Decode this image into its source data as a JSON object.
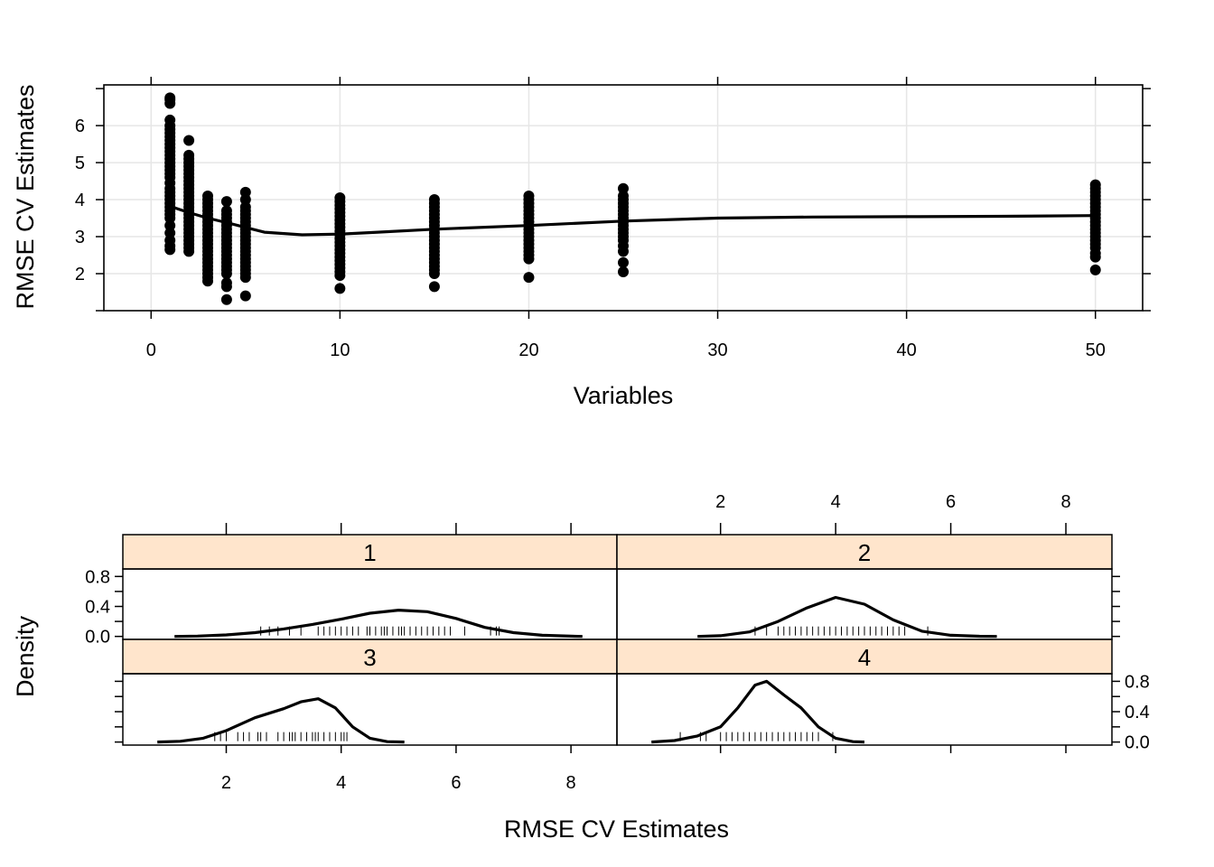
{
  "chart_data": [
    {
      "type": "scatter",
      "xlabel": "Variables",
      "ylabel": "RMSE CV Estimates",
      "xlim": [
        -2.5,
        52.5
      ],
      "ylim": [
        1.0,
        7.1
      ],
      "xticks": [
        0,
        10,
        20,
        30,
        40,
        50
      ],
      "yticks": [
        2,
        3,
        4,
        5,
        6
      ],
      "grid": true,
      "points": [
        {
          "x": 1,
          "y": [
            6.75,
            6.7,
            6.6,
            6.15,
            6.0,
            5.9,
            5.8,
            5.7,
            5.6,
            5.5,
            5.4,
            5.3,
            5.2,
            5.1,
            5.0,
            4.9,
            4.8,
            4.7,
            4.6,
            4.45,
            4.3,
            4.2,
            4.1,
            4.0,
            3.9,
            3.8,
            3.7,
            3.6,
            3.5,
            3.3,
            3.1,
            2.9,
            2.75,
            2.65
          ]
        },
        {
          "x": 2,
          "y": [
            5.6,
            5.2,
            5.1,
            5.0,
            4.9,
            4.8,
            4.7,
            4.6,
            4.5,
            4.4,
            4.3,
            4.2,
            4.1,
            4.0,
            3.9,
            3.8,
            3.7,
            3.6,
            3.5,
            3.4,
            3.3,
            3.2,
            3.1,
            3.0,
            2.9,
            2.8,
            2.7,
            2.6
          ]
        },
        {
          "x": 3,
          "y": [
            4.1,
            4.0,
            3.9,
            3.8,
            3.7,
            3.6,
            3.5,
            3.4,
            3.3,
            3.2,
            3.1,
            3.0,
            2.9,
            2.8,
            2.7,
            2.6,
            2.5,
            2.4,
            2.3,
            2.2,
            2.1,
            2.0,
            1.9,
            1.8
          ]
        },
        {
          "x": 4,
          "y": [
            3.95,
            3.7,
            3.6,
            3.5,
            3.4,
            3.3,
            3.2,
            3.1,
            3.0,
            2.9,
            2.8,
            2.7,
            2.6,
            2.5,
            2.4,
            2.3,
            2.2,
            2.1,
            2.0,
            1.75,
            1.65,
            1.3
          ]
        },
        {
          "x": 5,
          "y": [
            4.2,
            4.0,
            3.8,
            3.7,
            3.6,
            3.5,
            3.4,
            3.3,
            3.2,
            3.1,
            3.0,
            2.9,
            2.8,
            2.7,
            2.6,
            2.5,
            2.4,
            2.3,
            2.2,
            2.1,
            2.0,
            1.9,
            1.4
          ]
        },
        {
          "x": 10,
          "y": [
            4.05,
            3.95,
            3.85,
            3.75,
            3.65,
            3.55,
            3.45,
            3.35,
            3.25,
            3.15,
            3.05,
            2.95,
            2.85,
            2.75,
            2.65,
            2.55,
            2.45,
            2.35,
            2.25,
            2.15,
            2.05,
            1.95,
            1.6
          ]
        },
        {
          "x": 15,
          "y": [
            4.0,
            3.9,
            3.8,
            3.7,
            3.6,
            3.5,
            3.4,
            3.3,
            3.2,
            3.1,
            3.0,
            2.9,
            2.8,
            2.7,
            2.6,
            2.5,
            2.4,
            2.3,
            2.2,
            2.1,
            2.0,
            1.65
          ]
        },
        {
          "x": 20,
          "y": [
            4.1,
            4.0,
            3.9,
            3.8,
            3.7,
            3.6,
            3.5,
            3.4,
            3.3,
            3.2,
            3.1,
            3.0,
            2.9,
            2.8,
            2.7,
            2.6,
            2.5,
            2.4,
            1.9
          ]
        },
        {
          "x": 25,
          "y": [
            4.3,
            4.1,
            4.0,
            3.9,
            3.8,
            3.7,
            3.6,
            3.5,
            3.4,
            3.3,
            3.2,
            3.1,
            3.0,
            2.9,
            2.75,
            2.6,
            2.3,
            2.05
          ]
        },
        {
          "x": 50,
          "y": [
            4.4,
            4.3,
            4.2,
            4.1,
            4.0,
            3.9,
            3.8,
            3.7,
            3.6,
            3.5,
            3.4,
            3.3,
            3.2,
            3.1,
            3.0,
            2.9,
            2.8,
            2.7,
            2.55,
            2.45,
            2.1
          ]
        }
      ],
      "smooth_line": {
        "x": [
          1,
          2,
          3,
          4,
          5,
          6,
          8,
          10,
          12,
          15,
          20,
          25,
          30,
          35,
          40,
          45,
          50
        ],
        "y": [
          3.82,
          3.65,
          3.5,
          3.38,
          3.25,
          3.12,
          3.05,
          3.07,
          3.12,
          3.2,
          3.3,
          3.42,
          3.5,
          3.53,
          3.54,
          3.55,
          3.57
        ]
      }
    },
    {
      "type": "area",
      "xlabel": "RMSE CV Estimates",
      "ylabel": "Density",
      "xlim": [
        0.2,
        8.8
      ],
      "ylim": [
        -0.04,
        0.9
      ],
      "xticks": [
        2,
        4,
        6,
        8
      ],
      "yticks": [
        0.0,
        0.4,
        0.8
      ],
      "panels": [
        {
          "strip": "1",
          "density": {
            "x": [
              1.1,
              1.5,
              2.0,
              2.5,
              3.0,
              3.5,
              4.0,
              4.5,
              5.0,
              5.5,
              6.0,
              6.5,
              7.0,
              7.5,
              8.0,
              8.2
            ],
            "y": [
              0.0,
              0.005,
              0.02,
              0.05,
              0.1,
              0.16,
              0.23,
              0.31,
              0.35,
              0.33,
              0.24,
              0.12,
              0.05,
              0.015,
              0.003,
              0.0
            ]
          },
          "rug": [
            2.6,
            2.75,
            2.9,
            3.1,
            3.3,
            3.6,
            3.7,
            3.8,
            3.9,
            4.0,
            4.1,
            4.2,
            4.3,
            4.45,
            4.5,
            4.6,
            4.7,
            4.75,
            4.8,
            4.9,
            5.0,
            5.05,
            5.1,
            5.2,
            5.3,
            5.4,
            5.5,
            5.6,
            5.7,
            5.8,
            5.9,
            6.15,
            6.6,
            6.7,
            6.75
          ]
        },
        {
          "strip": "2",
          "density": {
            "x": [
              1.6,
              2.0,
              2.5,
              3.0,
              3.5,
              4.0,
              4.5,
              5.0,
              5.5,
              6.0,
              6.5,
              6.8
            ],
            "y": [
              0.0,
              0.01,
              0.06,
              0.2,
              0.38,
              0.52,
              0.43,
              0.22,
              0.07,
              0.015,
              0.002,
              0.0
            ]
          },
          "rug": [
            2.6,
            2.8,
            3.0,
            3.1,
            3.2,
            3.3,
            3.4,
            3.5,
            3.6,
            3.7,
            3.8,
            3.9,
            4.0,
            4.1,
            4.2,
            4.3,
            4.4,
            4.5,
            4.6,
            4.7,
            4.8,
            4.9,
            5.0,
            5.1,
            5.2,
            5.6
          ]
        },
        {
          "strip": "3",
          "density": {
            "x": [
              0.8,
              1.2,
              1.6,
              2.0,
              2.5,
              3.0,
              3.3,
              3.6,
              3.9,
              4.2,
              4.5,
              4.8,
              5.1
            ],
            "y": [
              0.0,
              0.01,
              0.05,
              0.15,
              0.32,
              0.44,
              0.53,
              0.57,
              0.45,
              0.2,
              0.05,
              0.005,
              0.0
            ]
          },
          "rug": [
            1.8,
            1.9,
            2.0,
            2.2,
            2.3,
            2.4,
            2.55,
            2.6,
            2.7,
            2.9,
            3.0,
            3.1,
            3.15,
            3.2,
            3.3,
            3.4,
            3.5,
            3.55,
            3.6,
            3.7,
            3.8,
            3.9,
            4.0,
            4.05,
            4.1
          ]
        },
        {
          "strip": "4",
          "density": {
            "x": [
              0.8,
              1.2,
              1.6,
              2.0,
              2.3,
              2.6,
              2.8,
              3.1,
              3.4,
              3.7,
              4.0,
              4.3,
              4.5
            ],
            "y": [
              0.0,
              0.02,
              0.08,
              0.2,
              0.45,
              0.75,
              0.8,
              0.62,
              0.45,
              0.2,
              0.05,
              0.005,
              0.0
            ]
          },
          "rug": [
            1.3,
            1.65,
            1.75,
            2.0,
            2.1,
            2.2,
            2.3,
            2.4,
            2.5,
            2.6,
            2.7,
            2.8,
            2.9,
            3.0,
            3.1,
            3.2,
            3.3,
            3.4,
            3.5,
            3.6,
            3.7,
            3.95
          ]
        }
      ]
    }
  ]
}
